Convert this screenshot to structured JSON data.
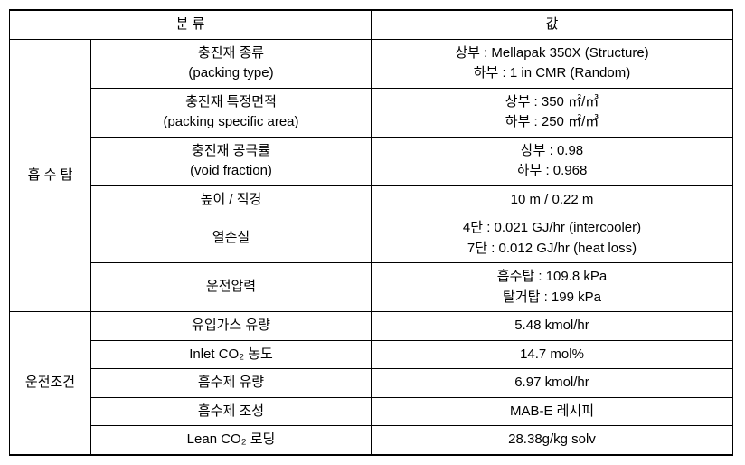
{
  "table": {
    "header": {
      "category_label": "분   류",
      "value_label": "값"
    },
    "group1": {
      "name": "흡 수 탑",
      "rows": [
        {
          "param_line1": "충진재 종류",
          "param_line2": "(packing type)",
          "value_line1": "상부 : Mellapak 350X (Structure)",
          "value_line2": "하부 : 1 in CMR (Random)"
        },
        {
          "param_line1": "충진재 특정면적",
          "param_line2": "(packing specific area)",
          "value_line1": "상부 : 350 ㎡/㎥",
          "value_line2": "하부 : 250 ㎡/㎥"
        },
        {
          "param_line1": "충진재 공극률",
          "param_line2": "(void fraction)",
          "value_line1": "상부 : 0.98",
          "value_line2": "하부 : 0.968"
        },
        {
          "param_line1": "높이 / 직경",
          "value_line1": "10 m / 0.22 m"
        },
        {
          "param_line1": "열손실",
          "value_line1": "4단 : 0.021 GJ/hr (intercooler)",
          "value_line2": "7단 : 0.012 GJ/hr (heat loss)"
        },
        {
          "param_line1": "운전압력",
          "value_line1": "흡수탑 : 109.8 kPa",
          "value_line2": "탈거탑 : 199 kPa"
        }
      ]
    },
    "group2": {
      "name": "운전조건",
      "rows": [
        {
          "param_line1": "유입가스 유량",
          "value_line1": "5.48 kmol/hr"
        },
        {
          "param_line1": "Inlet CO₂ 농도",
          "value_line1": "14.7 mol%"
        },
        {
          "param_line1": "흡수제 유량",
          "value_line1": "6.97 kmol/hr"
        },
        {
          "param_line1": "흡수제 조성",
          "value_line1": "MAB-E 레시피"
        },
        {
          "param_line1": "Lean CO₂ 로딩",
          "value_line1": "28.38g/kg solv"
        }
      ]
    }
  }
}
